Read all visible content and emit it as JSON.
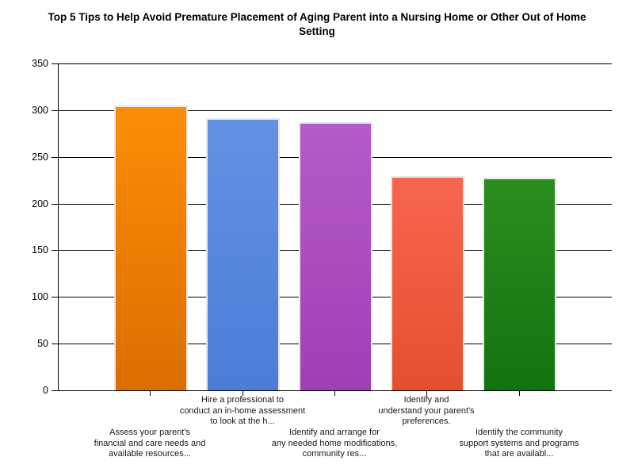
{
  "page": {
    "background_color": "#ffffff"
  },
  "chart_data": {
    "type": "bar",
    "title": "Top 5 Tips to Help Avoid Premature Placement of Aging Parent into a Nursing Home or Other Out of Home Setting",
    "xlabel": "",
    "ylabel": "",
    "ylim": [
      0,
      350
    ],
    "yticks": [
      0,
      50,
      100,
      150,
      200,
      250,
      300,
      350
    ],
    "grid": true,
    "legend_position": "none",
    "categories": [
      {
        "lines": [
          "Assess your parent's",
          "financial and care needs and",
          "available resources..."
        ],
        "label_row": 2
      },
      {
        "lines": [
          "Hire a professional to",
          "conduct an in-home assessment",
          "to look at the h..."
        ],
        "label_row": 1
      },
      {
        "lines": [
          "Identify and arrange for",
          "any needed home modifications,",
          "community res..."
        ],
        "label_row": 2
      },
      {
        "lines": [
          "Identify and",
          "understand your parent's",
          "preferences."
        ],
        "label_row": 1
      },
      {
        "lines": [
          "Identify the community",
          "support systems and programs",
          "that are availabl..."
        ],
        "label_row": 2
      }
    ],
    "values": [
      305,
      291,
      287,
      229,
      228
    ],
    "bar_colors": [
      {
        "top": "#fb8e06",
        "bottom": "#dc6e01"
      },
      {
        "top": "#6591e3",
        "bottom": "#4b7dd8"
      },
      {
        "top": "#b65ac8",
        "bottom": "#9f40b5"
      },
      {
        "top": "#f9664f",
        "bottom": "#e44f2e"
      },
      {
        "top": "#2a8f1e",
        "bottom": "#127310"
      }
    ],
    "axis_color": "#000000",
    "grid_color": "#000000",
    "tick_label_color": "#000000",
    "category_label_color": "#1a1a1a",
    "bar_border_color": "#e8e8e8"
  }
}
